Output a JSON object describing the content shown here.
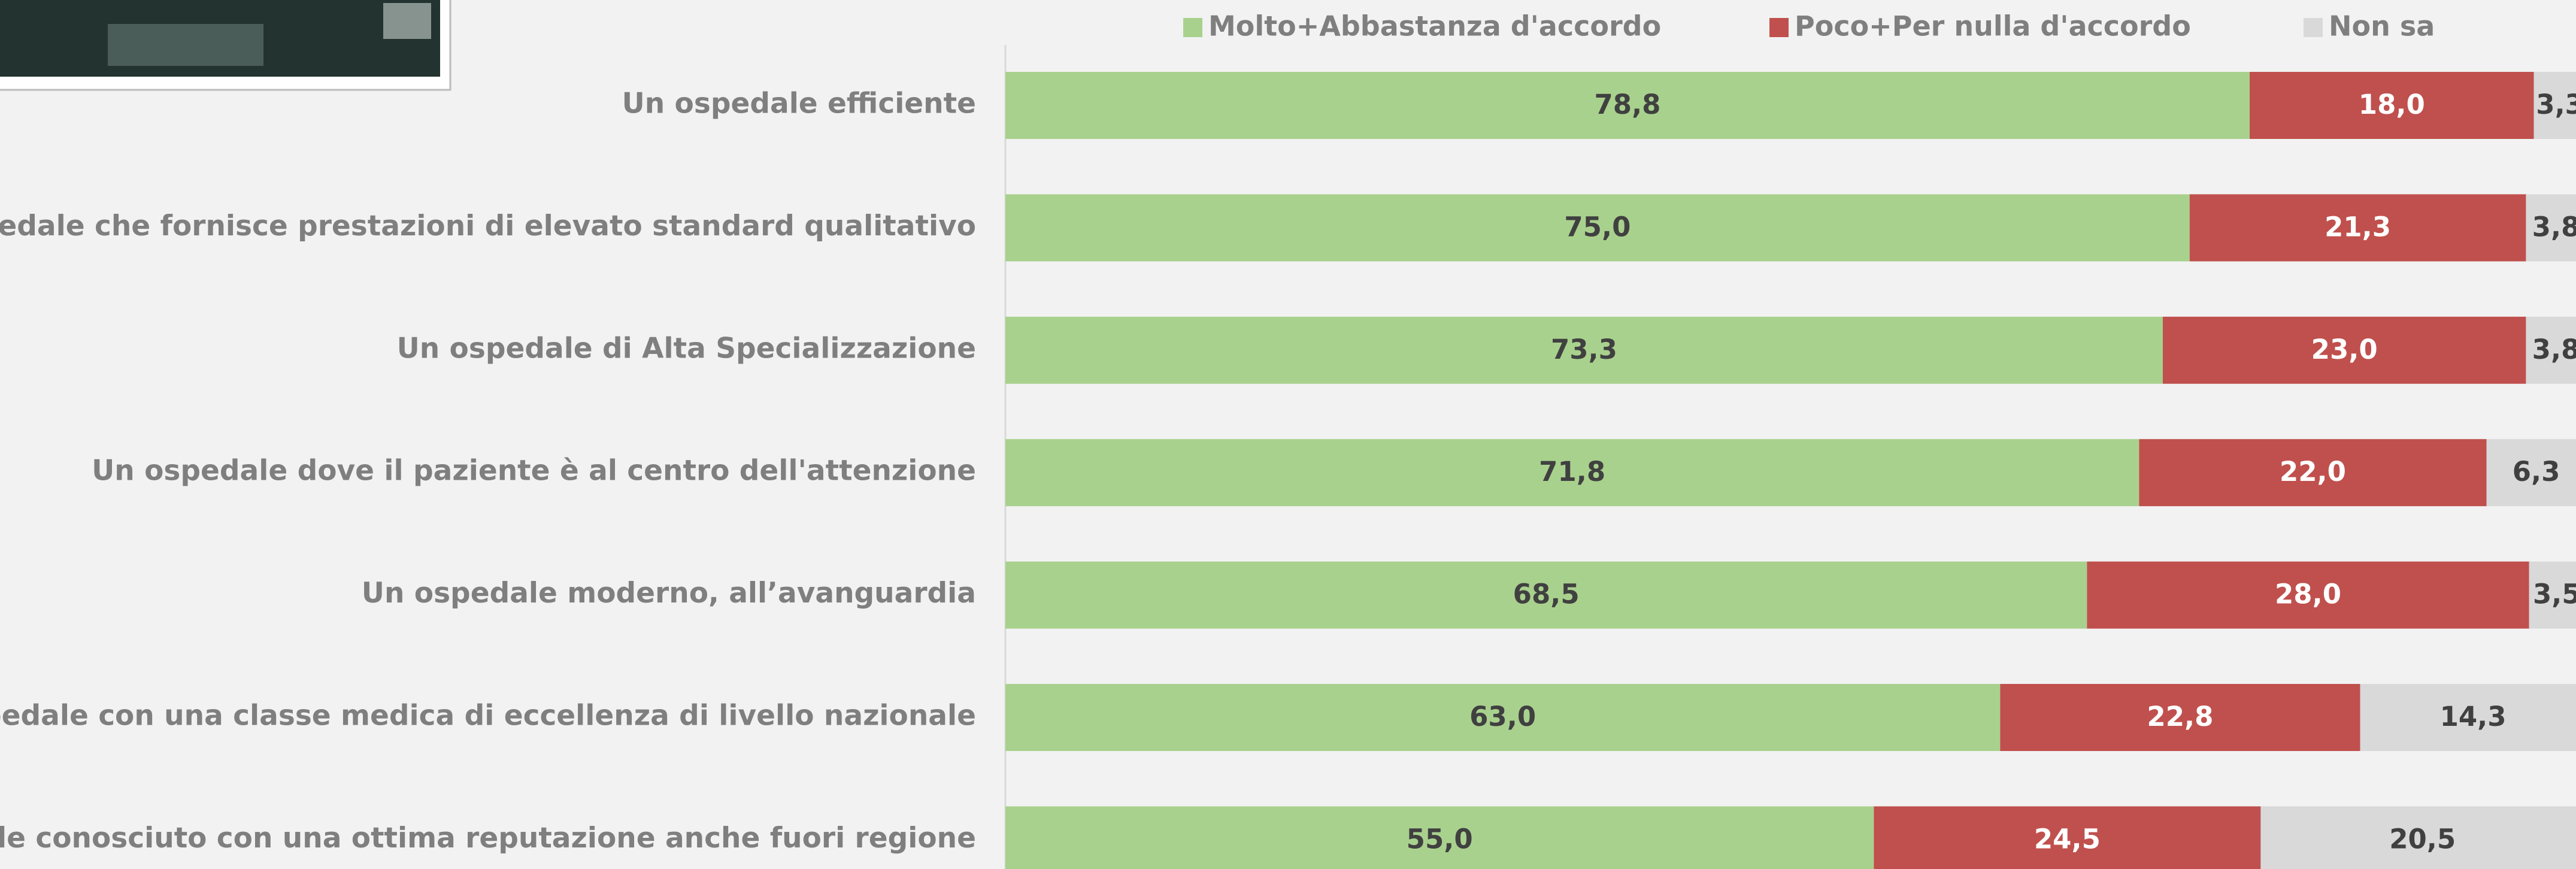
{
  "chart_data": {
    "type": "stacked-bar-horizontal",
    "categories": [
      "Un ospedale efficiente",
      "Uno ospedale che fornisce prestazioni di elevato standard qualitativo",
      "Un ospedale di Alta Specializzazione",
      "Un ospedale dove il paziente è al centro dell'attenzione",
      "Un ospedale moderno, all’avanguardia",
      "Un ospedale con una classe medica di eccellenza di livello nazionale",
      "Un ospedale conosciuto con una ottima reputazione anche fuori regione"
    ],
    "series": [
      {
        "name": "Molto+Abbastanza d'accordo",
        "color": "#a9d18e",
        "label_color": "#404040",
        "values": [
          78.8,
          75.0,
          73.3,
          71.8,
          68.5,
          63.0,
          55.0
        ],
        "value_labels": [
          "78,8",
          "75,0",
          "73,3",
          "71,8",
          "68,5",
          "63,0",
          "55,0"
        ]
      },
      {
        "name": "Poco+Per nulla d'accordo",
        "color": "#c0504d",
        "label_color": "#ffffff",
        "values": [
          18.0,
          21.3,
          23.0,
          22.0,
          28.0,
          22.8,
          24.5
        ],
        "value_labels": [
          "18,0",
          "21,3",
          "23,0",
          "22,0",
          "28,0",
          "22,8",
          "24,5"
        ]
      },
      {
        "name": "Non sa",
        "color": "#d9d9d9",
        "label_color": "#404040",
        "values": [
          3.3,
          3.8,
          3.8,
          6.3,
          3.5,
          14.3,
          20.5
        ],
        "value_labels": [
          "3,3",
          "3,8",
          "3,8",
          "6,3",
          "3,5",
          "14,3",
          "20,5"
        ]
      }
    ],
    "xlim": [
      0,
      100
    ],
    "legend": "top"
  }
}
